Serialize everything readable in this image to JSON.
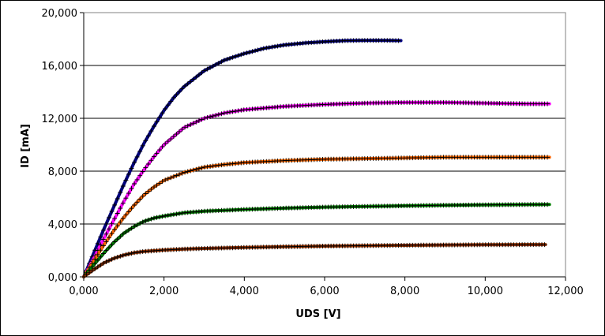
{
  "chart_data": {
    "type": "line",
    "title": "",
    "xlabel": "UDS [V]",
    "ylabel": "ID [mA]",
    "xlim": [
      0,
      12
    ],
    "ylim": [
      0,
      20
    ],
    "xticks": [
      "0,000",
      "2,000",
      "4,000",
      "6,000",
      "8,000",
      "10,000",
      "12,000"
    ],
    "yticks": [
      "0,000",
      "4,000",
      "8,000",
      "12,000",
      "16,000",
      "20,000"
    ],
    "grid": "horizontal",
    "legend": "none",
    "series": [
      {
        "color": "#000080",
        "x": [
          0,
          0.25,
          0.5,
          0.75,
          1.0,
          1.25,
          1.5,
          1.75,
          2.0,
          2.25,
          2.5,
          3.0,
          3.5,
          4.0,
          4.5,
          5.0,
          5.5,
          6.0,
          6.5,
          7.0,
          7.5,
          7.9
        ],
        "y": [
          0,
          1.8,
          3.6,
          5.3,
          7.0,
          8.6,
          10.1,
          11.4,
          12.6,
          13.6,
          14.4,
          15.6,
          16.4,
          16.9,
          17.3,
          17.55,
          17.7,
          17.8,
          17.88,
          17.9,
          17.9,
          17.88
        ]
      },
      {
        "color": "#ff00ff",
        "x": [
          0,
          0.25,
          0.5,
          0.75,
          1.0,
          1.25,
          1.5,
          1.75,
          2.0,
          2.5,
          3.0,
          3.5,
          4.0,
          5.0,
          6.0,
          7.0,
          8.0,
          9.0,
          10.0,
          11.0,
          11.6
        ],
        "y": [
          0,
          1.4,
          2.9,
          4.3,
          5.7,
          7.0,
          8.1,
          9.1,
          10.0,
          11.3,
          12.0,
          12.4,
          12.65,
          12.9,
          13.05,
          13.15,
          13.2,
          13.2,
          13.15,
          13.1,
          13.1
        ]
      },
      {
        "color": "#ff6600",
        "x": [
          0,
          0.25,
          0.5,
          0.75,
          1.0,
          1.25,
          1.5,
          1.75,
          2.0,
          2.5,
          3.0,
          3.5,
          4.0,
          5.0,
          6.0,
          7.0,
          8.0,
          9.0,
          10.0,
          11.0,
          11.6
        ],
        "y": [
          0,
          1.2,
          2.4,
          3.5,
          4.5,
          5.4,
          6.2,
          6.8,
          7.3,
          7.9,
          8.3,
          8.5,
          8.65,
          8.8,
          8.9,
          8.95,
          9.0,
          9.05,
          9.05,
          9.05,
          9.05
        ]
      },
      {
        "color": "#008000",
        "x": [
          0,
          0.25,
          0.5,
          0.75,
          1.0,
          1.25,
          1.5,
          1.75,
          2.0,
          2.5,
          3.0,
          4.0,
          5.0,
          6.0,
          7.0,
          8.0,
          9.0,
          10.0,
          11.0,
          11.6
        ],
        "y": [
          0,
          0.9,
          1.8,
          2.6,
          3.3,
          3.8,
          4.2,
          4.45,
          4.6,
          4.85,
          4.97,
          5.1,
          5.2,
          5.28,
          5.33,
          5.38,
          5.42,
          5.45,
          5.47,
          5.48
        ]
      },
      {
        "color": "#993300",
        "x": [
          0,
          0.25,
          0.5,
          0.75,
          1.0,
          1.25,
          1.5,
          2.0,
          2.5,
          3.0,
          4.0,
          5.0,
          6.0,
          7.0,
          8.0,
          9.0,
          10.0,
          11.0,
          11.5
        ],
        "y": [
          0,
          0.55,
          1.05,
          1.4,
          1.65,
          1.82,
          1.92,
          2.03,
          2.1,
          2.15,
          2.22,
          2.28,
          2.33,
          2.36,
          2.39,
          2.41,
          2.43,
          2.44,
          2.44
        ]
      }
    ]
  }
}
